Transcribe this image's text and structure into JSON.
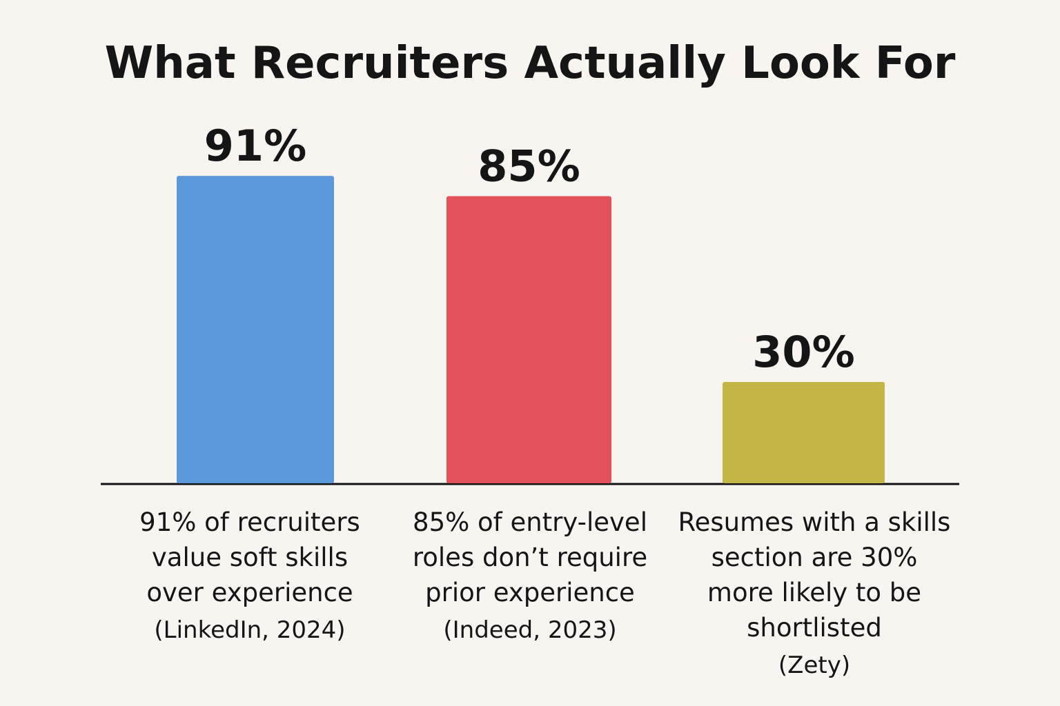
{
  "chart_data": {
    "type": "bar",
    "title": "What Recruiters Actually Look For",
    "categories": [
      "91% of recruiters value soft skills over experience (LinkedIn, 2024)",
      "85% of entry-level roles don’t require prior experience (Indeed, 2023)",
      "Resumes with a skills section are 30% more likely to be shortlisted (Zety)"
    ],
    "values": [
      91,
      85,
      30
    ],
    "value_labels": [
      "91%",
      "85%",
      "30%"
    ],
    "category_lines": [
      [
        "91% of recruiters",
        "value soft skills",
        "over experience"
      ],
      [
        "85% of entry-level",
        "roles don’t require",
        "prior experience"
      ],
      [
        "Resumes with a skills",
        "section are 30%",
        "more likely to be",
        "shortlisted"
      ]
    ],
    "sources": [
      "(LinkedIn, 2024)",
      "(Indeed, 2023)",
      "(Zety)"
    ],
    "colors": [
      "#5b97db",
      "#e2525a",
      "#c4b646"
    ],
    "ylim": [
      0,
      100
    ],
    "xlabel": "",
    "ylabel": "",
    "grid": false,
    "legend": "none"
  }
}
